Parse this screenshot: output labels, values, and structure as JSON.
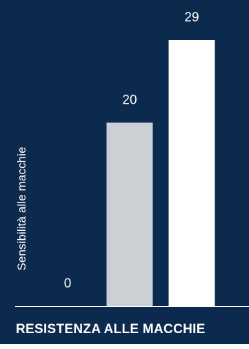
{
  "chart_data": {
    "type": "bar",
    "categories": [
      "",
      "",
      ""
    ],
    "values": [
      0,
      20,
      29
    ],
    "data_labels": [
      "0",
      "20",
      "29"
    ],
    "colors": [
      "#0c2a4e",
      "#cbd0d5",
      "#ffffff"
    ],
    "xlabel": "RESISTENZA ALLE MACCHIE",
    "ylabel": "Sensibilità alle macchie",
    "ylim": [
      0,
      29
    ],
    "grid": false,
    "background": "#0c2a4e"
  }
}
